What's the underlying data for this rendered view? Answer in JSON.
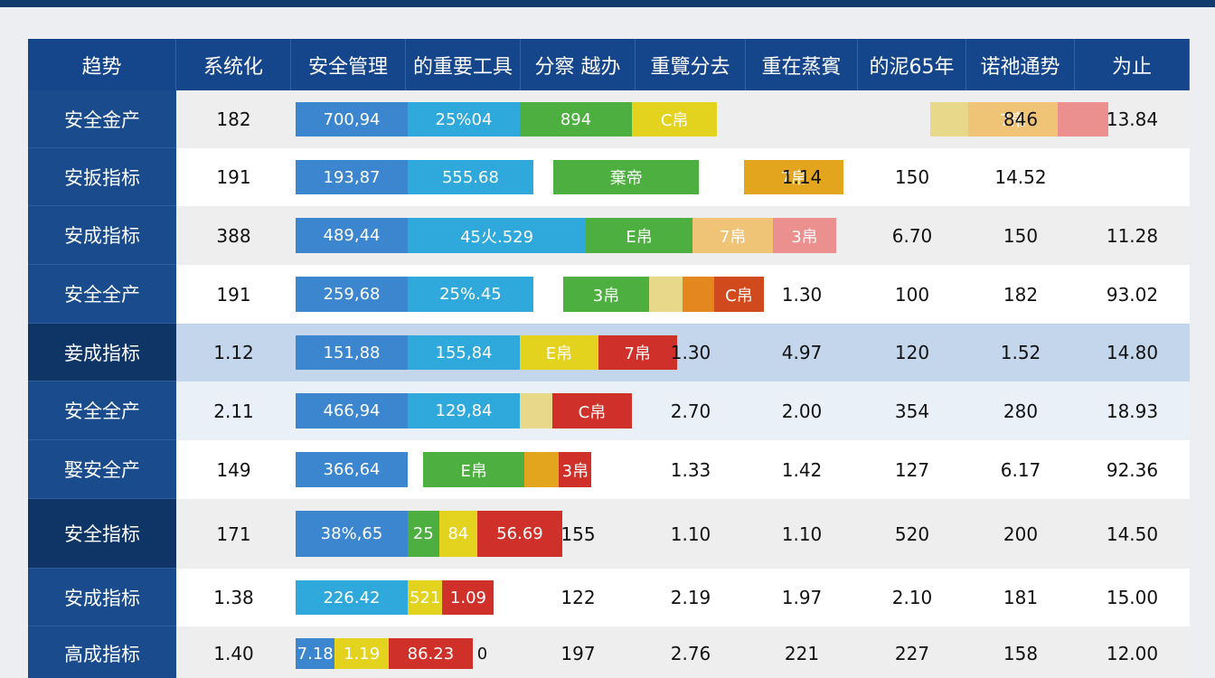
{
  "chart_data": {
    "type": "table",
    "columns": [
      "趋势",
      "系统化",
      "安全管理",
      "的重要工具",
      "分察 越办",
      "重覽分去",
      "重在蒸賓",
      "的泥65年",
      "诺祂通势",
      "为止"
    ],
    "rows": [
      {
        "label": "安全金产",
        "count": "182",
        "bars": [
          {
            "text": "700,94",
            "color": "#3b86cf",
            "x0": 0,
            "x1": 1
          },
          {
            "text": "25%04",
            "color": "#2fa8dc",
            "x0": 1,
            "x1": 2
          },
          {
            "text": "894",
            "color": "#4caf3f",
            "x0": 2,
            "x1": 3
          },
          {
            "text": "C帛",
            "color": "#e3d21e",
            "x0": 3,
            "x1": 3.76
          },
          {
            "text": "",
            "color": "#e8d88a",
            "x0": 5.66,
            "x1": 6
          },
          {
            "text": "7帛",
            "color": "#f0c476",
            "x0": 6,
            "x1": 6.8
          },
          {
            "text": "",
            "color": "#ec8f8f",
            "x0": 6.8,
            "x1": 7.25
          }
        ],
        "cells": [
          {
            "col": 7,
            "text": "846"
          },
          {
            "col": 8,
            "text": "13.84"
          }
        ],
        "shade": "#eeeeee",
        "dark": false
      },
      {
        "label": "安扳指标",
        "count": "191",
        "bars": [
          {
            "text": "193,87",
            "color": "#3b86cf",
            "x0": 0,
            "x1": 1
          },
          {
            "text": "555.68",
            "color": "#2fa8dc",
            "x0": 1,
            "x1": 2.12
          },
          {
            "text": "棄帝",
            "color": "#4caf3f",
            "x0": 2.3,
            "x1": 3.6
          },
          {
            "text": "7帛",
            "color": "#e3a51e",
            "x0": 4,
            "x1": 4.89
          }
        ],
        "cells": [
          {
            "col": 5,
            "text": "1.14"
          },
          {
            "col": 6,
            "text": "150"
          },
          {
            "col": 7,
            "text": "14.52"
          }
        ],
        "shade": "#ffffff",
        "dark": false
      },
      {
        "label": "安成指标",
        "count": "388",
        "bars": [
          {
            "text": "489,44",
            "color": "#3b86cf",
            "x0": 0,
            "x1": 1
          },
          {
            "text": "45⽕.529",
            "color": "#2fa8dc",
            "x0": 1,
            "x1": 2.59
          },
          {
            "text": "E帛",
            "color": "#4caf3f",
            "x0": 2.59,
            "x1": 3.54
          },
          {
            "text": "7帛",
            "color": "#f0c476",
            "x0": 3.54,
            "x1": 4.26
          },
          {
            "text": "3帛",
            "color": "#ec8f8f",
            "x0": 4.26,
            "x1": 4.82
          }
        ],
        "cells": [
          {
            "col": 6,
            "text": "6.70"
          },
          {
            "col": 7,
            "text": "150"
          },
          {
            "col": 8,
            "text": "11.28"
          }
        ],
        "shade": "#eeeeee",
        "dark": false
      },
      {
        "label": "安全全产",
        "count": "191",
        "bars": [
          {
            "text": "259,68",
            "color": "#3b86cf",
            "x0": 0,
            "x1": 1
          },
          {
            "text": "25%.45",
            "color": "#2fa8dc",
            "x0": 1,
            "x1": 2.12
          },
          {
            "text": "3帛",
            "color": "#4caf3f",
            "x0": 2.39,
            "x1": 3.15
          },
          {
            "text": "",
            "color": "#e8d88a",
            "x0": 3.15,
            "x1": 3.45
          },
          {
            "text": "",
            "color": "#e3871e",
            "x0": 3.45,
            "x1": 3.73
          },
          {
            "text": "C帛",
            "color": "#d04a1e",
            "x0": 3.73,
            "x1": 4.18
          }
        ],
        "cells": [
          {
            "col": 5,
            "text": "1.30"
          },
          {
            "col": 6,
            "text": "100"
          },
          {
            "col": 7,
            "text": "182"
          },
          {
            "col": 8,
            "text": "93.02"
          }
        ],
        "shade": "#ffffff",
        "dark": false
      },
      {
        "label": "妾成指标",
        "count": "1.12",
        "bars": [
          {
            "text": "151,88",
            "color": "#3b86cf",
            "x0": 0,
            "x1": 1
          },
          {
            "text": "155,84",
            "color": "#2fa8dc",
            "x0": 1,
            "x1": 2
          },
          {
            "text": "E帛",
            "color": "#e3d21e",
            "x0": 2,
            "x1": 2.7
          },
          {
            "text": "7帛",
            "color": "#d0302a",
            "x0": 2.7,
            "x1": 3.4
          }
        ],
        "cells": [
          {
            "col": 4,
            "text": "1.30"
          },
          {
            "col": 5,
            "text": "4.97"
          },
          {
            "col": 6,
            "text": "120"
          },
          {
            "col": 7,
            "text": "1.52"
          },
          {
            "col": 8,
            "text": "14.80"
          }
        ],
        "shade": "#c3d6ec",
        "dark": true
      },
      {
        "label": "安全全产",
        "count": "2.11",
        "bars": [
          {
            "text": "466,94",
            "color": "#3b86cf",
            "x0": 0,
            "x1": 1
          },
          {
            "text": "129,84",
            "color": "#2fa8dc",
            "x0": 1,
            "x1": 2
          },
          {
            "text": "",
            "color": "#e8d88a",
            "x0": 2,
            "x1": 2.29
          },
          {
            "text": "C帛",
            "color": "#d0302a",
            "x0": 2.29,
            "x1": 3
          }
        ],
        "cells": [
          {
            "col": 4,
            "text": "2.70"
          },
          {
            "col": 5,
            "text": "2.00"
          },
          {
            "col": 6,
            "text": "354"
          },
          {
            "col": 7,
            "text": "280"
          },
          {
            "col": 8,
            "text": "18.93"
          }
        ],
        "shade": "#eaf0f8",
        "dark": false
      },
      {
        "label": "娶安全产",
        "count": "149",
        "bars": [
          {
            "text": "366,64",
            "color": "#3b86cf",
            "x0": 0,
            "x1": 1
          },
          {
            "text": "E帛",
            "color": "#4caf3f",
            "x0": 1.14,
            "x1": 2.04
          },
          {
            "text": "",
            "color": "#e3a51e",
            "x0": 2.04,
            "x1": 2.35
          },
          {
            "text": "3帛",
            "color": "#d0302a",
            "x0": 2.35,
            "x1": 2.64
          }
        ],
        "cells": [
          {
            "col": 4,
            "text": "1.33"
          },
          {
            "col": 5,
            "text": "1.42"
          },
          {
            "col": 6,
            "text": "127"
          },
          {
            "col": 7,
            "text": "6.17"
          },
          {
            "col": 8,
            "text": "92.36"
          }
        ],
        "shade": "#ffffff",
        "dark": false
      },
      {
        "label": "安全指标",
        "count": "171",
        "bars": [
          {
            "text": "38%,65",
            "color": "#3b86cf",
            "x0": 0,
            "x1": 1
          },
          {
            "text": "25",
            "color": "#4caf3f",
            "x0": 1,
            "x1": 1.28
          },
          {
            "text": "84",
            "color": "#e3d21e",
            "x0": 1.28,
            "x1": 1.62
          },
          {
            "text": "56.69",
            "color": "#d0302a",
            "x0": 1.62,
            "x1": 2.38
          }
        ],
        "cells": [
          {
            "col": 3,
            "text": "155"
          },
          {
            "col": 4,
            "text": "1.10"
          },
          {
            "col": 5,
            "text": "1.10"
          },
          {
            "col": 6,
            "text": "520"
          },
          {
            "col": 7,
            "text": "200"
          },
          {
            "col": 8,
            "text": "14.50"
          }
        ],
        "shade": "#eeeeee",
        "dark": true
      },
      {
        "label": "安成指标",
        "count": "1.38",
        "bars": [
          {
            "text": "226.42",
            "color": "#2fa8dc",
            "x0": 0,
            "x1": 1
          },
          {
            "text": "521",
            "color": "#e3d21e",
            "x0": 1,
            "x1": 1.31
          },
          {
            "text": "1.09",
            "color": "#d0302a",
            "x0": 1.31,
            "x1": 1.77
          }
        ],
        "cells": [
          {
            "col": 3,
            "text": "122"
          },
          {
            "col": 4,
            "text": "2.19"
          },
          {
            "col": 5,
            "text": "1.97"
          },
          {
            "col": 6,
            "text": "2.10"
          },
          {
            "col": 7,
            "text": "181"
          },
          {
            "col": 8,
            "text": "15.00"
          }
        ],
        "shade": "#ffffff",
        "dark": false
      },
      {
        "label": "高成指标",
        "count": "1.40",
        "bars": [
          {
            "text": "7.18",
            "color": "#3b86cf",
            "x0": 0,
            "x1": 0.35
          },
          {
            "text": "1.19",
            "color": "#e3d21e",
            "x0": 0.35,
            "x1": 0.83
          },
          {
            "text": "86.23",
            "color": "#d0302a",
            "x0": 0.83,
            "x1": 1.58
          },
          {
            "text": "0",
            "color": "transparent",
            "x0": 1.58,
            "x1": 1.75
          }
        ],
        "cells": [
          {
            "col": 3,
            "text": "197"
          },
          {
            "col": 4,
            "text": "2.76"
          },
          {
            "col": 5,
            "text": "221"
          },
          {
            "col": 6,
            "text": "227"
          },
          {
            "col": 7,
            "text": "158"
          },
          {
            "col": 8,
            "text": "12.00"
          }
        ],
        "shade": "#eeeeee",
        "dark": false
      }
    ]
  }
}
